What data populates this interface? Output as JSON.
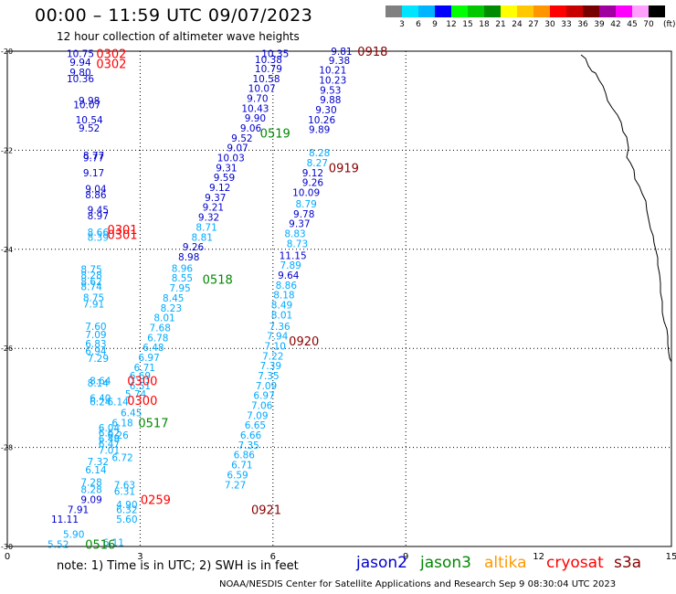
{
  "header": {
    "title": "00:00 – 11:59 UTC 09/07/2023",
    "subtitle": "12 hour collection of altimeter wave heights"
  },
  "colorbar": {
    "labels": [
      "3",
      "6",
      "9",
      "12",
      "15",
      "18",
      "21",
      "24",
      "27",
      "30",
      "33",
      "36",
      "39",
      "42",
      "45",
      "70"
    ],
    "colors": [
      "#808080",
      "#00e5ff",
      "#00b4ff",
      "#0000ff",
      "#00ff00",
      "#00c800",
      "#008c00",
      "#ffff00",
      "#ffc800",
      "#ff9600",
      "#ff0000",
      "#c80000",
      "#780000",
      "#a000a0",
      "#ff00ff",
      "#ffa0ff",
      "#000000"
    ],
    "unit": "(ft)"
  },
  "axes": {
    "x_ticks": [
      "0",
      "3",
      "6",
      "9",
      "12",
      "15"
    ],
    "y_ticks": [
      "-20",
      "-22",
      "-24",
      "-26",
      "-28",
      "-30"
    ]
  },
  "legend": [
    {
      "name": "jason2",
      "color": "#0000cc"
    },
    {
      "name": "jason3",
      "color": "#008800"
    },
    {
      "name": "altika",
      "color": "#ff9900"
    },
    {
      "name": "cryosat",
      "color": "#ff0000"
    },
    {
      "name": "s3a",
      "color": "#880000"
    }
  ],
  "note": "note: 1) Time is in UTC; 2) SWH is in feet",
  "credit": "NOAA/NESDIS Center for Satellite Applications and Research   Sep  9 08:30:04 UTC 2023",
  "chart_data": {
    "type": "scatter",
    "xlim": [
      0,
      15
    ],
    "ylim": [
      -30,
      -20
    ],
    "grid": true,
    "time_labels": [
      {
        "text": "0302",
        "x": 2.35,
        "y": -20.05,
        "color": "#ff0000"
      },
      {
        "text": "0302",
        "x": 2.35,
        "y": -20.25,
        "color": "#ff0000"
      },
      {
        "text": "0918",
        "x": 8.25,
        "y": -20.0,
        "color": "#880000"
      },
      {
        "text": "0519",
        "x": 6.05,
        "y": -21.65,
        "color": "#008800"
      },
      {
        "text": "0919",
        "x": 7.6,
        "y": -22.35,
        "color": "#880000"
      },
      {
        "text": "0301",
        "x": 2.6,
        "y": -23.6,
        "color": "#ff0000"
      },
      {
        "text": "0301",
        "x": 2.6,
        "y": -23.7,
        "color": "#ff0000"
      },
      {
        "text": "0518",
        "x": 4.75,
        "y": -24.6,
        "color": "#008800"
      },
      {
        "text": "0920",
        "x": 6.7,
        "y": -25.85,
        "color": "#880000"
      },
      {
        "text": "0300",
        "x": 3.05,
        "y": -26.65,
        "color": "#ff0000"
      },
      {
        "text": "0300",
        "x": 3.05,
        "y": -27.05,
        "color": "#ff0000"
      },
      {
        "text": "0517",
        "x": 3.3,
        "y": -27.5,
        "color": "#008800"
      },
      {
        "text": "0259",
        "x": 3.35,
        "y": -29.05,
        "color": "#ff0000"
      },
      {
        "text": "0921",
        "x": 5.85,
        "y": -29.25,
        "color": "#880000"
      },
      {
        "text": "0516",
        "x": 2.1,
        "y": -29.95,
        "color": "#008800"
      }
    ],
    "points": [
      {
        "v": "10.75",
        "x": 1.65,
        "y": -20.05,
        "c": "#0000cc"
      },
      {
        "v": "9.94",
        "x": 1.65,
        "y": -20.22,
        "c": "#0000cc"
      },
      {
        "v": "9.80",
        "x": 1.65,
        "y": -20.42,
        "c": "#0000cc"
      },
      {
        "v": "10.36",
        "x": 1.65,
        "y": -20.55,
        "c": "#0000cc"
      },
      {
        "v": "9.98",
        "x": 1.85,
        "y": -21.0,
        "c": "#0000cc"
      },
      {
        "v": "10.07",
        "x": 1.8,
        "y": -21.08,
        "c": "#0000cc"
      },
      {
        "v": "10.54",
        "x": 1.85,
        "y": -21.38,
        "c": "#0000cc"
      },
      {
        "v": "9.52",
        "x": 1.85,
        "y": -21.55,
        "c": "#0000cc"
      },
      {
        "v": "8.77",
        "x": 1.95,
        "y": -22.1,
        "c": "#0000cc"
      },
      {
        "v": "9.77",
        "x": 1.95,
        "y": -22.15,
        "c": "#0000cc"
      },
      {
        "v": "9.17",
        "x": 1.95,
        "y": -22.45,
        "c": "#0000cc"
      },
      {
        "v": "9.04",
        "x": 2.0,
        "y": -22.78,
        "c": "#0000cc"
      },
      {
        "v": "8.86",
        "x": 2.0,
        "y": -22.9,
        "c": "#0000cc"
      },
      {
        "v": "9.45",
        "x": 2.05,
        "y": -23.2,
        "c": "#0000cc"
      },
      {
        "v": "8.97",
        "x": 2.05,
        "y": -23.32,
        "c": "#0000cc"
      },
      {
        "v": "8.66",
        "x": 2.05,
        "y": -23.65,
        "c": "#00aaff"
      },
      {
        "v": "8.39",
        "x": 2.05,
        "y": -23.75,
        "c": "#00aaff"
      },
      {
        "v": "8.75",
        "x": 1.9,
        "y": -24.4,
        "c": "#00aaff"
      },
      {
        "v": "8.28",
        "x": 1.9,
        "y": -24.52,
        "c": "#00aaff"
      },
      {
        "v": "8.62",
        "x": 1.9,
        "y": -24.65,
        "c": "#00aaff"
      },
      {
        "v": "8.74",
        "x": 1.9,
        "y": -24.75,
        "c": "#00aaff"
      },
      {
        "v": "8.75",
        "x": 1.95,
        "y": -24.97,
        "c": "#00aaff"
      },
      {
        "v": "7.91",
        "x": 1.95,
        "y": -25.1,
        "c": "#00aaff"
      },
      {
        "v": "7.60",
        "x": 2.0,
        "y": -25.55,
        "c": "#00aaff"
      },
      {
        "v": "7.09",
        "x": 2.0,
        "y": -25.72,
        "c": "#00aaff"
      },
      {
        "v": "6.83",
        "x": 2.0,
        "y": -25.9,
        "c": "#00aaff"
      },
      {
        "v": "6.94",
        "x": 2.0,
        "y": -26.05,
        "c": "#00aaff"
      },
      {
        "v": "7.29",
        "x": 2.05,
        "y": -26.2,
        "c": "#00aaff"
      },
      {
        "v": "8.64",
        "x": 2.1,
        "y": -26.65,
        "c": "#00aaff"
      },
      {
        "v": "8.14",
        "x": 2.05,
        "y": -26.7,
        "c": "#00aaff"
      },
      {
        "v": "6.40",
        "x": 2.1,
        "y": -27.0,
        "c": "#00aaff"
      },
      {
        "v": "6.24",
        "x": 2.1,
        "y": -27.08,
        "c": "#00aaff"
      },
      {
        "v": "6.14",
        "x": 2.5,
        "y": -27.08,
        "c": "#00aaff"
      },
      {
        "v": "6.45",
        "x": 2.8,
        "y": -27.3,
        "c": "#00aaff"
      },
      {
        "v": "6.18",
        "x": 2.6,
        "y": -27.5,
        "c": "#00aaff"
      },
      {
        "v": "6.04",
        "x": 2.3,
        "y": -27.6,
        "c": "#00aaff"
      },
      {
        "v": "6.62",
        "x": 2.3,
        "y": -27.7,
        "c": "#00aaff"
      },
      {
        "v": "6.26",
        "x": 2.5,
        "y": -27.75,
        "c": "#00aaff"
      },
      {
        "v": "6.48",
        "x": 2.3,
        "y": -27.82,
        "c": "#00aaff"
      },
      {
        "v": "6.47",
        "x": 2.3,
        "y": -27.92,
        "c": "#00aaff"
      },
      {
        "v": "7.01",
        "x": 2.3,
        "y": -28.05,
        "c": "#00aaff"
      },
      {
        "v": "6.72",
        "x": 2.6,
        "y": -28.2,
        "c": "#00aaff"
      },
      {
        "v": "7.32",
        "x": 2.05,
        "y": -28.28,
        "c": "#00aaff"
      },
      {
        "v": "6.14",
        "x": 2.0,
        "y": -28.45,
        "c": "#00aaff"
      },
      {
        "v": "7.28",
        "x": 1.9,
        "y": -28.7,
        "c": "#00aaff"
      },
      {
        "v": "7.63",
        "x": 2.65,
        "y": -28.75,
        "c": "#00aaff"
      },
      {
        "v": "8.28",
        "x": 1.9,
        "y": -28.85,
        "c": "#00aaff"
      },
      {
        "v": "6.31",
        "x": 2.65,
        "y": -28.88,
        "c": "#00aaff"
      },
      {
        "v": "9.09",
        "x": 1.9,
        "y": -29.05,
        "c": "#0000cc"
      },
      {
        "v": "4.90",
        "x": 2.7,
        "y": -29.15,
        "c": "#00aaff"
      },
      {
        "v": "7.91",
        "x": 1.6,
        "y": -29.25,
        "c": "#0000cc"
      },
      {
        "v": "6.32",
        "x": 2.7,
        "y": -29.25,
        "c": "#00aaff"
      },
      {
        "v": "11.11",
        "x": 1.3,
        "y": -29.45,
        "c": "#0000cc"
      },
      {
        "v": "5.60",
        "x": 2.7,
        "y": -29.45,
        "c": "#00aaff"
      },
      {
        "v": "5.90",
        "x": 1.5,
        "y": -29.75,
        "c": "#00aaff"
      },
      {
        "v": "5.52",
        "x": 1.15,
        "y": -29.95,
        "c": "#00aaff"
      },
      {
        "v": "6.11",
        "x": 2.4,
        "y": -29.92,
        "c": "#00aaff"
      },
      {
        "v": "10.35",
        "x": 6.05,
        "y": -20.05,
        "c": "#0000cc"
      },
      {
        "v": "10.38",
        "x": 5.9,
        "y": -20.17,
        "c": "#0000cc"
      },
      {
        "v": "10.79",
        "x": 5.9,
        "y": -20.35,
        "c": "#0000cc"
      },
      {
        "v": "10.58",
        "x": 5.85,
        "y": -20.55,
        "c": "#0000cc"
      },
      {
        "v": "10.07",
        "x": 5.75,
        "y": -20.75,
        "c": "#0000cc"
      },
      {
        "v": "9.70",
        "x": 5.65,
        "y": -20.95,
        "c": "#0000cc"
      },
      {
        "v": "10.43",
        "x": 5.6,
        "y": -21.15,
        "c": "#0000cc"
      },
      {
        "v": "9.90",
        "x": 5.6,
        "y": -21.35,
        "c": "#0000cc"
      },
      {
        "v": "9.06",
        "x": 5.5,
        "y": -21.55,
        "c": "#0000cc"
      },
      {
        "v": "9.52",
        "x": 5.3,
        "y": -21.75,
        "c": "#0000cc"
      },
      {
        "v": "9.07",
        "x": 5.2,
        "y": -21.95,
        "c": "#0000cc"
      },
      {
        "v": "10.03",
        "x": 5.05,
        "y": -22.15,
        "c": "#0000cc"
      },
      {
        "v": "9.31",
        "x": 4.95,
        "y": -22.35,
        "c": "#0000cc"
      },
      {
        "v": "9.59",
        "x": 4.9,
        "y": -22.55,
        "c": "#0000cc"
      },
      {
        "v": "9.12",
        "x": 4.8,
        "y": -22.75,
        "c": "#0000cc"
      },
      {
        "v": "9.37",
        "x": 4.7,
        "y": -22.95,
        "c": "#0000cc"
      },
      {
        "v": "9.21",
        "x": 4.65,
        "y": -23.15,
        "c": "#0000cc"
      },
      {
        "v": "9.32",
        "x": 4.55,
        "y": -23.35,
        "c": "#0000cc"
      },
      {
        "v": "8.71",
        "x": 4.5,
        "y": -23.55,
        "c": "#00aaff"
      },
      {
        "v": "8.81",
        "x": 4.4,
        "y": -23.75,
        "c": "#00aaff"
      },
      {
        "v": "9.26",
        "x": 4.2,
        "y": -23.95,
        "c": "#0000cc"
      },
      {
        "v": "8.98",
        "x": 4.1,
        "y": -24.15,
        "c": "#0000cc"
      },
      {
        "v": "8.96",
        "x": 3.95,
        "y": -24.38,
        "c": "#00aaff"
      },
      {
        "v": "8.55",
        "x": 3.95,
        "y": -24.58,
        "c": "#00aaff"
      },
      {
        "v": "7.95",
        "x": 3.9,
        "y": -24.78,
        "c": "#00aaff"
      },
      {
        "v": "8.45",
        "x": 3.75,
        "y": -24.98,
        "c": "#00aaff"
      },
      {
        "v": "8.23",
        "x": 3.7,
        "y": -25.18,
        "c": "#00aaff"
      },
      {
        "v": "8.01",
        "x": 3.55,
        "y": -25.38,
        "c": "#00aaff"
      },
      {
        "v": "7.68",
        "x": 3.45,
        "y": -25.58,
        "c": "#00aaff"
      },
      {
        "v": "6.78",
        "x": 3.4,
        "y": -25.78,
        "c": "#00aaff"
      },
      {
        "v": "6.48",
        "x": 3.3,
        "y": -25.98,
        "c": "#00aaff"
      },
      {
        "v": "6.97",
        "x": 3.2,
        "y": -26.18,
        "c": "#00aaff"
      },
      {
        "v": "6.71",
        "x": 3.1,
        "y": -26.38,
        "c": "#00aaff"
      },
      {
        "v": "6.69",
        "x": 3.0,
        "y": -26.55,
        "c": "#00aaff"
      },
      {
        "v": "6.51",
        "x": 3.0,
        "y": -26.75,
        "c": "#00aaff"
      },
      {
        "v": "5.74",
        "x": 2.9,
        "y": -26.92,
        "c": "#00aaff"
      },
      {
        "v": "9.81",
        "x": 7.55,
        "y": -20.0,
        "c": "#0000cc"
      },
      {
        "v": "9.38",
        "x": 7.5,
        "y": -20.18,
        "c": "#0000cc"
      },
      {
        "v": "10.21",
        "x": 7.35,
        "y": -20.38,
        "c": "#0000cc"
      },
      {
        "v": "10.23",
        "x": 7.35,
        "y": -20.58,
        "c": "#0000cc"
      },
      {
        "v": "9.53",
        "x": 7.3,
        "y": -20.78,
        "c": "#0000cc"
      },
      {
        "v": "9.88",
        "x": 7.3,
        "y": -20.98,
        "c": "#0000cc"
      },
      {
        "v": "9.30",
        "x": 7.2,
        "y": -21.18,
        "c": "#0000cc"
      },
      {
        "v": "10.26",
        "x": 7.1,
        "y": -21.38,
        "c": "#0000cc"
      },
      {
        "v": "9.89",
        "x": 7.05,
        "y": -21.58,
        "c": "#0000cc"
      },
      {
        "v": "8.28",
        "x": 7.05,
        "y": -22.05,
        "c": "#00aaff"
      },
      {
        "v": "8.27",
        "x": 7.0,
        "y": -22.25,
        "c": "#00aaff"
      },
      {
        "v": "9.12",
        "x": 6.9,
        "y": -22.45,
        "c": "#0000cc"
      },
      {
        "v": "9.26",
        "x": 6.9,
        "y": -22.65,
        "c": "#0000cc"
      },
      {
        "v": "10.09",
        "x": 6.75,
        "y": -22.85,
        "c": "#0000cc"
      },
      {
        "v": "8.79",
        "x": 6.75,
        "y": -23.08,
        "c": "#00aaff"
      },
      {
        "v": "9.78",
        "x": 6.7,
        "y": -23.28,
        "c": "#0000cc"
      },
      {
        "v": "9.37",
        "x": 6.6,
        "y": -23.48,
        "c": "#0000cc"
      },
      {
        "v": "8.83",
        "x": 6.5,
        "y": -23.68,
        "c": "#00aaff"
      },
      {
        "v": "8.73",
        "x": 6.55,
        "y": -23.88,
        "c": "#00aaff"
      },
      {
        "v": "11.15",
        "x": 6.45,
        "y": -24.12,
        "c": "#0000cc"
      },
      {
        "v": "7.89",
        "x": 6.4,
        "y": -24.32,
        "c": "#00aaff"
      },
      {
        "v": "9.64",
        "x": 6.35,
        "y": -24.52,
        "c": "#0000cc"
      },
      {
        "v": "8.86",
        "x": 6.3,
        "y": -24.72,
        "c": "#00aaff"
      },
      {
        "v": "8.18",
        "x": 6.25,
        "y": -24.92,
        "c": "#00aaff"
      },
      {
        "v": "8.49",
        "x": 6.2,
        "y": -25.12,
        "c": "#00aaff"
      },
      {
        "v": "8.01",
        "x": 6.2,
        "y": -25.32,
        "c": "#00aaff"
      },
      {
        "v": "7.36",
        "x": 6.15,
        "y": -25.55,
        "c": "#00aaff"
      },
      {
        "v": "7.94",
        "x": 6.1,
        "y": -25.75,
        "c": "#00aaff"
      },
      {
        "v": "7.10",
        "x": 6.05,
        "y": -25.95,
        "c": "#00aaff"
      },
      {
        "v": "7.22",
        "x": 6.0,
        "y": -26.15,
        "c": "#00aaff"
      },
      {
        "v": "7.39",
        "x": 5.95,
        "y": -26.35,
        "c": "#00aaff"
      },
      {
        "v": "7.35",
        "x": 5.9,
        "y": -26.55,
        "c": "#00aaff"
      },
      {
        "v": "7.09",
        "x": 5.85,
        "y": -26.75,
        "c": "#00aaff"
      },
      {
        "v": "6.97",
        "x": 5.8,
        "y": -26.95,
        "c": "#00aaff"
      },
      {
        "v": "7.06",
        "x": 5.75,
        "y": -27.15,
        "c": "#00aaff"
      },
      {
        "v": "7.09",
        "x": 5.65,
        "y": -27.35,
        "c": "#00aaff"
      },
      {
        "v": "6.65",
        "x": 5.6,
        "y": -27.55,
        "c": "#00aaff"
      },
      {
        "v": "6.66",
        "x": 5.5,
        "y": -27.75,
        "c": "#00aaff"
      },
      {
        "v": "7.35",
        "x": 5.45,
        "y": -27.95,
        "c": "#00aaff"
      },
      {
        "v": "6.86",
        "x": 5.35,
        "y": -28.15,
        "c": "#00aaff"
      },
      {
        "v": "6.71",
        "x": 5.3,
        "y": -28.35,
        "c": "#00aaff"
      },
      {
        "v": "6.59",
        "x": 5.2,
        "y": -28.55,
        "c": "#00aaff"
      },
      {
        "v": "7.27",
        "x": 5.15,
        "y": -28.75,
        "c": "#00aaff"
      }
    ]
  }
}
